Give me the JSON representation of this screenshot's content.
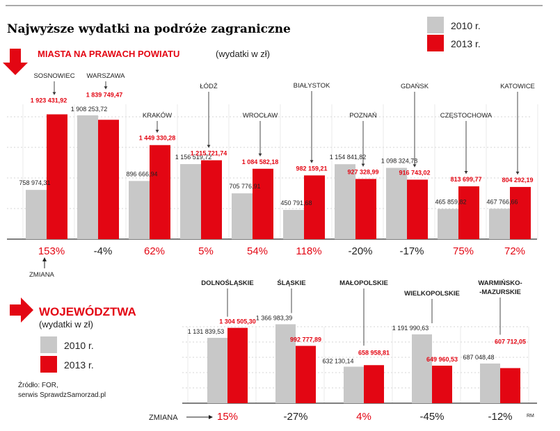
{
  "title": "Najwyższe wydatki na podróże zagraniczne",
  "legend_top": {
    "y2010": "2010 r.",
    "y2013": "2013 r."
  },
  "colors": {
    "grey": "#c8c8c8",
    "red": "#e30613",
    "text_red": "#e30613",
    "text": "#222222"
  },
  "section1": {
    "heading": "MIASTA NA PRAWACH POWIATU",
    "unit": "(wydatki w zł)"
  },
  "section2": {
    "heading": "WOJEWÓDZTWA",
    "unit": "(wydatki w zł)"
  },
  "legend_bottom": {
    "y2010": "2010 r.",
    "y2013": "2013 r."
  },
  "zmiana_label_1": "ZMIANA",
  "zmiana_label_2": "ZMIANA",
  "source": {
    "line1": "Źródło: FOR,",
    "line2": "serwis SprawdzSamorzad.pl"
  },
  "author": "RM",
  "chart_data": [
    {
      "type": "bar",
      "title": "MIASTA NA PRAWACH POWIATU",
      "ylabel": "wydatki w zł",
      "ylim": [
        0,
        2200000
      ],
      "categories": [
        "SOSNOWIEC",
        "WARSZAWA",
        "KRAKÓW",
        "ŁÓDŹ",
        "WROCŁAW",
        "BIAŁYSTOK",
        "POZNAŃ",
        "GDAŃSK",
        "CZĘSTOCHOWA",
        "KATOWICE"
      ],
      "series": [
        {
          "name": "2010 r.",
          "values": [
            758974.31,
            1908253.72,
            896666.94,
            1156519.72,
            705776.91,
            450791.68,
            1154841.82,
            1098324.78,
            465859.82,
            467766.66
          ],
          "labels": [
            "758 974,31",
            "1 908 253,72",
            "896 666,94",
            "1 156 519,72",
            "705 776,91",
            "450 791,68",
            "1 154 841,82",
            "1 098 324,78",
            "465 859,82",
            "467 766,66"
          ]
        },
        {
          "name": "2013 r.",
          "values": [
            1923431.92,
            1839749.47,
            1449330.28,
            1215721.74,
            1084582.18,
            982159.21,
            927328.99,
            916743.02,
            813699.77,
            804292.19
          ],
          "labels": [
            "1 923 431,92",
            "1 839 749,47",
            "1 449 330,28",
            "1 215 721,74",
            "1 084 582,18",
            "982 159,21",
            "927 328,99",
            "916 743,02",
            "813 699,77",
            "804 292,19"
          ]
        }
      ],
      "changes": [
        {
          "text": "153%",
          "highlight": true
        },
        {
          "text": "-4%",
          "highlight": false
        },
        {
          "text": "62%",
          "highlight": true
        },
        {
          "text": "5%",
          "highlight": true
        },
        {
          "text": "54%",
          "highlight": true
        },
        {
          "text": "118%",
          "highlight": true
        },
        {
          "text": "-20%",
          "highlight": false
        },
        {
          "text": "-17%",
          "highlight": false
        },
        {
          "text": "75%",
          "highlight": true
        },
        {
          "text": "72%",
          "highlight": true
        }
      ]
    },
    {
      "type": "bar",
      "title": "WOJEWÓDZTWA",
      "ylabel": "wydatki w zł",
      "ylim": [
        0,
        2000000
      ],
      "categories": [
        "DOLNOŚLĄSKIE",
        "ŚLĄSKIE",
        "MAŁOPOLSKIE",
        "WIELKOPOLSKIE",
        "WARMIŃSKO-MAZURSKIE"
      ],
      "series": [
        {
          "name": "2010 r.",
          "values": [
            1131839.53,
            1366983.39,
            632130.14,
            1191990.63,
            687048.48
          ],
          "labels": [
            "1 131 839,53",
            "1 366 983,39",
            "632 130,14",
            "1 191 990,63",
            "687 048,48"
          ]
        },
        {
          "name": "2013 r.",
          "values": [
            1304505.3,
            992777.89,
            658958.81,
            649960.53,
            607712.05
          ],
          "labels": [
            "1 304 505,30",
            "992 777,89",
            "658 958,81",
            "649 960,53",
            "607 712,05"
          ]
        }
      ],
      "changes": [
        {
          "text": "15%",
          "highlight": true
        },
        {
          "text": "-27%",
          "highlight": false
        },
        {
          "text": "4%",
          "highlight": true
        },
        {
          "text": "-45%",
          "highlight": false
        },
        {
          "text": "-12%",
          "highlight": false
        }
      ]
    }
  ]
}
